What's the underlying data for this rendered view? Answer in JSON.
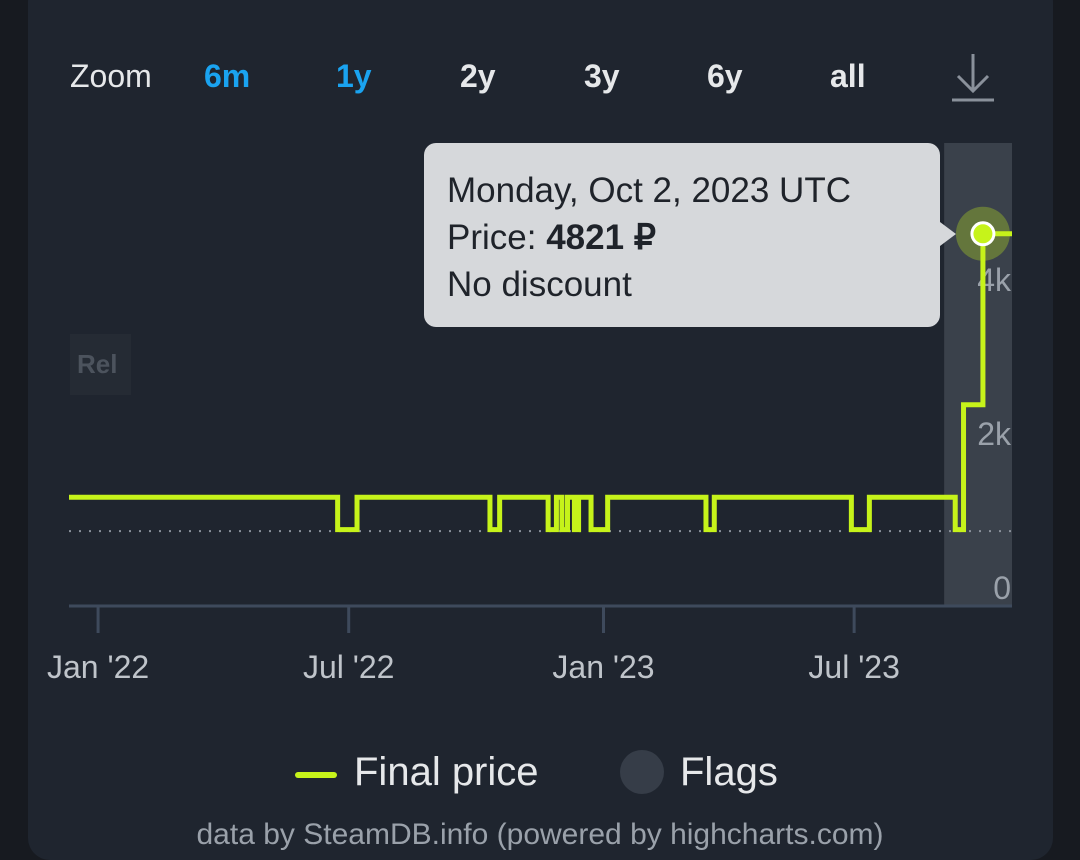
{
  "zoom": {
    "label": "Zoom",
    "buttons": [
      {
        "label": "6m",
        "active": true
      },
      {
        "label": "1y",
        "active": true
      },
      {
        "label": "2y",
        "active": false
      },
      {
        "label": "3y",
        "active": false
      },
      {
        "label": "6y",
        "active": false
      },
      {
        "label": "all",
        "active": false
      }
    ],
    "download_icon": "download-icon"
  },
  "tooltip": {
    "date": "Monday, Oct 2, 2023 UTC",
    "price_label": "Price: ",
    "price_value": "4821 ₽",
    "discount": "No discount"
  },
  "flag_label": "Rel",
  "legend": {
    "series": "Final price",
    "flags": "Flags"
  },
  "footer": "data by SteamDB.info (powered by highcharts.com)",
  "colors": {
    "line": "#c6f31a",
    "accent": "#1aa3f0",
    "flag_band": "#3a414b"
  },
  "chart_data": {
    "type": "line",
    "step": true,
    "xlim": [
      "2021-12-11",
      "2023-10-23"
    ],
    "ylim": [
      0,
      6000
    ],
    "yticks": [
      {
        "v": 0,
        "label": "0"
      },
      {
        "v": 2000,
        "label": "2k"
      },
      {
        "v": 4000,
        "label": "4k"
      }
    ],
    "xticks": [
      {
        "date": "2022-01-01",
        "label": "Jan '22"
      },
      {
        "date": "2022-07-01",
        "label": "Jul '22"
      },
      {
        "date": "2023-01-01",
        "label": "Jan '23"
      },
      {
        "date": "2023-07-01",
        "label": "Jul '23"
      }
    ],
    "lowest_price_line": 960,
    "flag_band": [
      "2023-09-04",
      "2023-10-23"
    ],
    "series": [
      {
        "name": "Final price",
        "points": [
          [
            "2021-12-11",
            1399
          ],
          [
            "2022-06-23",
            979
          ],
          [
            "2022-07-07",
            1399
          ],
          [
            "2022-10-11",
            979
          ],
          [
            "2022-10-18",
            1399
          ],
          [
            "2022-11-22",
            979
          ],
          [
            "2022-11-28",
            1399
          ],
          [
            "2022-12-02",
            979
          ],
          [
            "2022-12-06",
            1399
          ],
          [
            "2022-12-11",
            979
          ],
          [
            "2022-12-14",
            1399
          ],
          [
            "2022-12-23",
            979
          ],
          [
            "2023-01-04",
            1399
          ],
          [
            "2023-03-16",
            979
          ],
          [
            "2023-03-22",
            1399
          ],
          [
            "2023-06-29",
            979
          ],
          [
            "2023-07-12",
            1399
          ],
          [
            "2023-09-12",
            979
          ],
          [
            "2023-09-18",
            2600
          ],
          [
            "2023-10-02",
            4821
          ],
          [
            "2023-10-23",
            4821
          ]
        ]
      }
    ],
    "highlight": {
      "date": "2023-10-02",
      "value": 4821
    }
  }
}
